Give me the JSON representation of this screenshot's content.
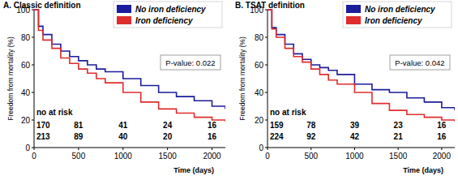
{
  "chart_data": [
    {
      "type": "line",
      "line_style": "step",
      "legend": "top-right",
      "title": "A. Classic definition",
      "x_label": "Time (days)",
      "y_label": "Freedom from mortality (%)",
      "annotations": [
        "P-value: 0.022"
      ],
      "at_risk_label": "no at risk",
      "x": [
        0,
        50,
        100,
        200,
        300,
        400,
        500,
        600,
        700,
        800,
        1000,
        1200,
        1400,
        1600,
        1800,
        2000,
        2150
      ],
      "series": [
        {
          "name": "No iron deficiency",
          "color": "#1c1c9c",
          "values": [
            100,
            88,
            82,
            75,
            70,
            66,
            63,
            60,
            57,
            55,
            50,
            45,
            40,
            37,
            34,
            30,
            28
          ],
          "at_risk": [
            170,
            81,
            41,
            24,
            16
          ]
        },
        {
          "name": "Iron deficiency",
          "color": "#e02c2c",
          "values": [
            100,
            85,
            78,
            72,
            65,
            61,
            57,
            54,
            50,
            47,
            40,
            33,
            28,
            25,
            22,
            20,
            19
          ],
          "at_risk": [
            213,
            89,
            40,
            20,
            16
          ]
        }
      ],
      "xlim": [
        0,
        2150
      ],
      "ylim": [
        0,
        100
      ],
      "xticks": [
        0,
        500,
        1000,
        1500,
        2000
      ],
      "yticks": [
        0,
        20,
        40,
        60,
        80,
        100
      ]
    },
    {
      "type": "line",
      "line_style": "step",
      "legend": "top-right",
      "title": "B. TSAT definition",
      "x_label": "Time (days)",
      "y_label": "Freedom from mortality (%)",
      "annotations": [
        "P-value: 0.042"
      ],
      "at_risk_label": "no at risk",
      "x": [
        0,
        50,
        100,
        200,
        300,
        400,
        500,
        600,
        700,
        800,
        1000,
        1200,
        1400,
        1600,
        1800,
        2000,
        2150
      ],
      "series": [
        {
          "name": "No iron deficiency",
          "color": "#1c1c9c",
          "values": [
            100,
            87,
            82,
            75,
            68,
            64,
            60,
            58,
            56,
            53,
            46,
            42,
            40,
            36,
            33,
            29,
            27
          ],
          "at_risk": [
            159,
            78,
            39,
            23,
            16
          ]
        },
        {
          "name": "Iron deficiency",
          "color": "#e02c2c",
          "values": [
            100,
            86,
            80,
            72,
            66,
            62,
            57,
            53,
            49,
            46,
            40,
            32,
            27,
            24,
            22,
            20,
            19
          ],
          "at_risk": [
            224,
            92,
            42,
            21,
            16
          ]
        }
      ],
      "xlim": [
        0,
        2150
      ],
      "ylim": [
        0,
        100
      ],
      "xticks": [
        0,
        500,
        1000,
        1500,
        2000
      ],
      "yticks": [
        0,
        20,
        40,
        60,
        80,
        100
      ]
    }
  ]
}
